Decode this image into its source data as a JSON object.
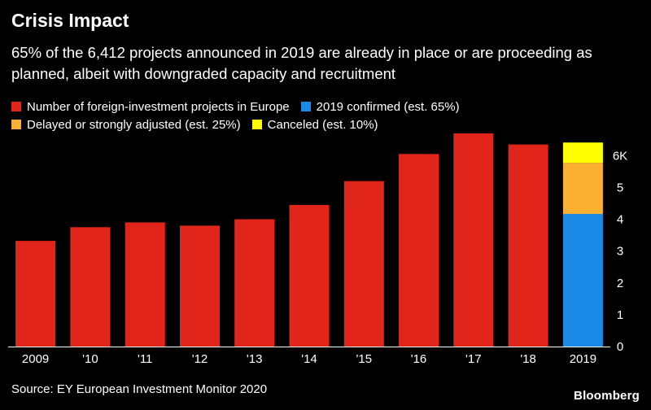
{
  "title": "Crisis Impact",
  "subtitle": "65% of the 6,412 projects announced in 2019 are already in place or are proceeding as planned, albeit with downgraded capacity and recruitment",
  "legend": {
    "items": [
      {
        "label": "Number of foreign-investment projects in Europe",
        "color": "#e1251b"
      },
      {
        "label": "2019 confirmed (est. 65%)",
        "color": "#1a8ae6"
      },
      {
        "label": "Delayed or strongly adjusted (est. 25%)",
        "color": "#fbb034"
      },
      {
        "label": "Canceled (est. 10%)",
        "color": "#ffff00"
      }
    ]
  },
  "source": "Source: EY European Investment Monitor 2020",
  "brand": "Bloomberg",
  "chart_data": {
    "type": "bar",
    "categories": [
      "2009",
      "'10",
      "'11",
      "'12",
      "'13",
      "'14",
      "'15",
      "'16",
      "'17",
      "'18",
      "2019"
    ],
    "series": [
      {
        "name": "Number of foreign-investment projects in Europe",
        "color": "#e1251b",
        "values": [
          3320,
          3750,
          3900,
          3800,
          4000,
          4450,
          5200,
          6050,
          6700,
          6350,
          null
        ]
      },
      {
        "name": "2019 confirmed (est. 65%)",
        "color": "#1a8ae6",
        "values": [
          null,
          null,
          null,
          null,
          null,
          null,
          null,
          null,
          null,
          null,
          4168
        ]
      },
      {
        "name": "Delayed or strongly adjusted (est. 25%)",
        "color": "#fbb034",
        "values": [
          null,
          null,
          null,
          null,
          null,
          null,
          null,
          null,
          null,
          null,
          1603
        ]
      },
      {
        "name": "Canceled (est. 10%)",
        "color": "#ffff00",
        "values": [
          null,
          null,
          null,
          null,
          null,
          null,
          null,
          null,
          null,
          null,
          641
        ]
      }
    ],
    "stacked": true,
    "y_ticks": [
      "0",
      "1",
      "2",
      "3",
      "4",
      "5",
      "6K"
    ],
    "y_tick_values": [
      0,
      1000,
      2000,
      3000,
      4000,
      5000,
      6000
    ],
    "ylim": [
      0,
      6800
    ],
    "yaxis_side": "right",
    "xlabel": "",
    "ylabel": ""
  }
}
